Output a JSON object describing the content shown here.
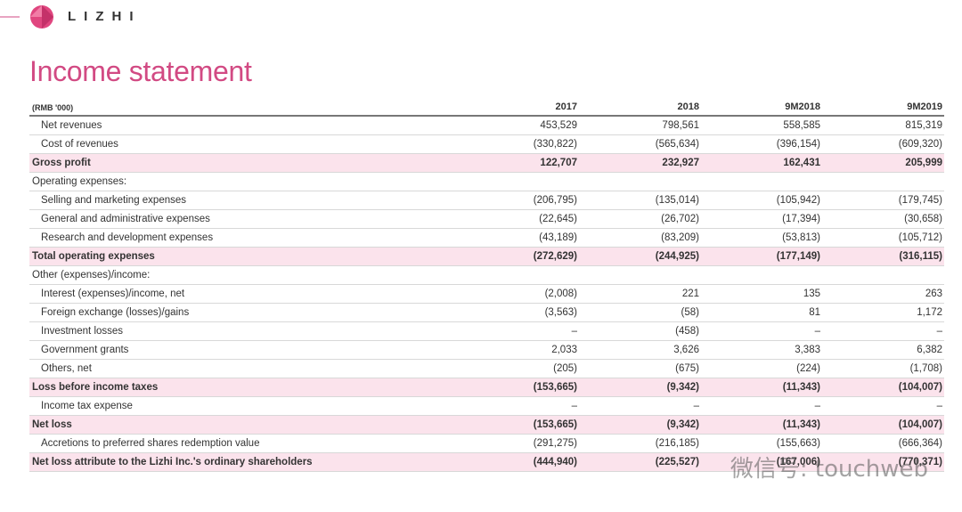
{
  "header": {
    "logo": "LIZHI",
    "title": "Income statement"
  },
  "table": {
    "unit": "(RMB '000)",
    "columns": [
      "2017",
      "2018",
      "9M2018",
      "9M2019"
    ],
    "rows": [
      {
        "style": "item",
        "label": "Net revenues",
        "cells": [
          "453,529",
          "798,561",
          "558,585",
          "815,319"
        ]
      },
      {
        "style": "item",
        "label": "Cost of revenues",
        "cells": [
          "(330,822)",
          "(565,634)",
          "(396,154)",
          "(609,320)"
        ]
      },
      {
        "style": "total",
        "label": "Gross profit",
        "cells": [
          "122,707",
          "232,927",
          "162,431",
          "205,999"
        ]
      },
      {
        "style": "section",
        "label": "Operating expenses:",
        "cells": []
      },
      {
        "style": "item",
        "label": "Selling and marketing expenses",
        "cells": [
          "(206,795)",
          "(135,014)",
          "(105,942)",
          "(179,745)"
        ]
      },
      {
        "style": "item",
        "label": "General and administrative expenses",
        "cells": [
          "(22,645)",
          "(26,702)",
          "(17,394)",
          "(30,658)"
        ]
      },
      {
        "style": "item",
        "label": "Research and development expenses",
        "cells": [
          "(43,189)",
          "(83,209)",
          "(53,813)",
          "(105,712)"
        ]
      },
      {
        "style": "total",
        "label": "Total operating expenses",
        "cells": [
          "(272,629)",
          "(244,925)",
          "(177,149)",
          "(316,115)"
        ]
      },
      {
        "style": "section",
        "label": "Other (expenses)/income:",
        "cells": []
      },
      {
        "style": "item",
        "label": "Interest (expenses)/income, net",
        "cells": [
          "(2,008)",
          "221",
          "135",
          "263"
        ]
      },
      {
        "style": "item",
        "label": "Foreign exchange (losses)/gains",
        "cells": [
          "(3,563)",
          "(58)",
          "81",
          "1,172"
        ]
      },
      {
        "style": "item",
        "label": "Investment losses",
        "cells": [
          "–",
          "(458)",
          "–",
          "–"
        ]
      },
      {
        "style": "item",
        "label": "Government grants",
        "cells": [
          "2,033",
          "3,626",
          "3,383",
          "6,382"
        ]
      },
      {
        "style": "item",
        "label": "Others, net",
        "cells": [
          "(205)",
          "(675)",
          "(224)",
          "(1,708)"
        ]
      },
      {
        "style": "total",
        "label": "Loss before income taxes",
        "cells": [
          "(153,665)",
          "(9,342)",
          "(11,343)",
          "(104,007)"
        ]
      },
      {
        "style": "item",
        "label": "Income tax expense",
        "cells": [
          "–",
          "–",
          "–",
          "–"
        ]
      },
      {
        "style": "total",
        "label": "Net loss",
        "cells": [
          "(153,665)",
          "(9,342)",
          "(11,343)",
          "(104,007)"
        ]
      },
      {
        "style": "item",
        "label": "Accretions to preferred shares redemption value",
        "cells": [
          "(291,275)",
          "(216,185)",
          "(155,663)",
          "(666,364)"
        ]
      },
      {
        "style": "total",
        "label": "Net loss attribute to the Lizhi Inc.'s ordinary shareholders",
        "cells": [
          "(444,940)",
          "(225,527)",
          "(167,006)",
          "(770,371)"
        ]
      }
    ]
  },
  "watermark": "微信号: touchweb"
}
